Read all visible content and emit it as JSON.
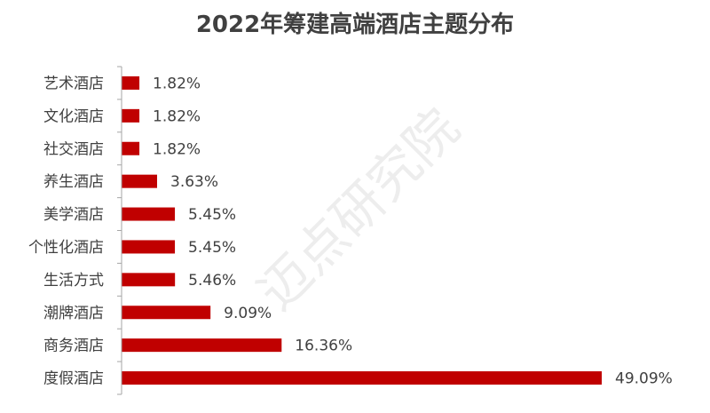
{
  "chart_data": {
    "type": "bar",
    "orientation": "horizontal",
    "title": "2022年筹建高端酒店主题分布",
    "categories": [
      "艺术酒店",
      "文化酒店",
      "社交酒店",
      "养生酒店",
      "美学酒店",
      "个性化酒店",
      "生活方式",
      "潮牌酒店",
      "商务酒店",
      "度假酒店"
    ],
    "values": [
      1.82,
      1.82,
      1.82,
      3.63,
      5.45,
      5.45,
      5.46,
      9.09,
      16.36,
      49.09
    ],
    "value_labels": [
      "1.82%",
      "1.82%",
      "1.82%",
      "3.63%",
      "5.45%",
      "5.45%",
      "5.46%",
      "9.09%",
      "16.36%",
      "49.09%"
    ],
    "xlim": [
      0,
      50
    ],
    "grid": false,
    "legend": "none",
    "bar_color": "#c00000",
    "axis_color": "#a6a6a6"
  },
  "watermark": "迈点研究院"
}
